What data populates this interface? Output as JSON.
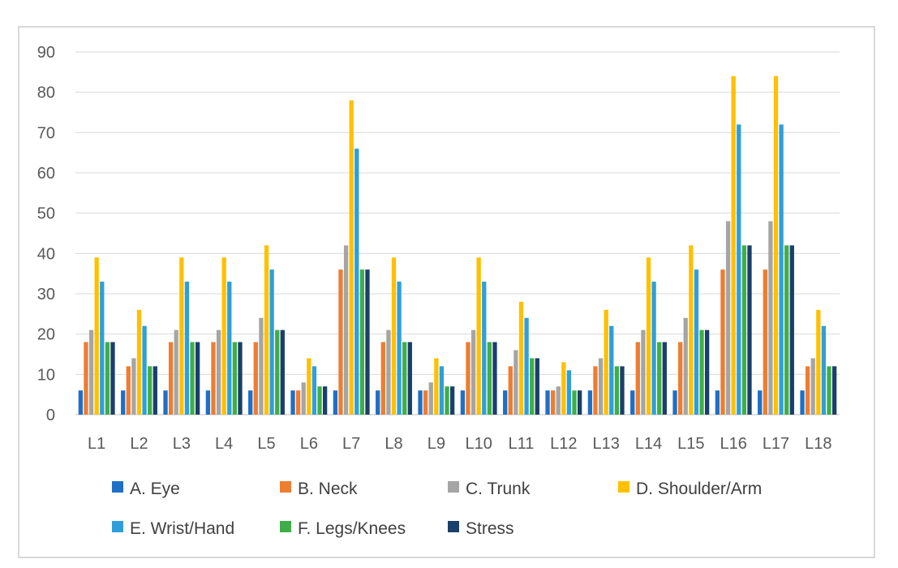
{
  "chart_data": {
    "type": "bar",
    "title": "",
    "xlabel": "",
    "ylabel": "",
    "ylim": [
      0,
      90
    ],
    "yticks": [
      0,
      10,
      20,
      30,
      40,
      50,
      60,
      70,
      80,
      90
    ],
    "grid": true,
    "legend_position": "bottom",
    "categories": [
      "L1",
      "L2",
      "L3",
      "L4",
      "L5",
      "L6",
      "L7",
      "L8",
      "L9",
      "L10",
      "L11",
      "L12",
      "L13",
      "L14",
      "L15",
      "L16",
      "L17",
      "L18"
    ],
    "series": [
      {
        "name": "A. Eye",
        "color": "#1f6fc5",
        "values": [
          6,
          6,
          6,
          6,
          6,
          6,
          6,
          6,
          6,
          6,
          6,
          6,
          6,
          6,
          6,
          6,
          6,
          6
        ]
      },
      {
        "name": "B. Neck",
        "color": "#ed7d31",
        "values": [
          18,
          12,
          18,
          18,
          18,
          6,
          36,
          18,
          6,
          18,
          12,
          6,
          12,
          18,
          18,
          36,
          36,
          12
        ]
      },
      {
        "name": "C. Trunk",
        "color": "#a5a5a5",
        "values": [
          21,
          14,
          21,
          21,
          24,
          8,
          42,
          21,
          8,
          21,
          16,
          7,
          14,
          21,
          24,
          48,
          48,
          14
        ]
      },
      {
        "name": "D. Shoulder/Arm",
        "color": "#ffc000",
        "values": [
          39,
          26,
          39,
          39,
          42,
          14,
          78,
          39,
          14,
          39,
          28,
          13,
          26,
          39,
          42,
          84,
          84,
          26
        ]
      },
      {
        "name": "E. Wrist/Hand",
        "color": "#2e9fd8",
        "values": [
          33,
          22,
          33,
          33,
          36,
          12,
          66,
          33,
          12,
          33,
          24,
          11,
          22,
          33,
          36,
          72,
          72,
          22
        ]
      },
      {
        "name": "F. Legs/Knees",
        "color": "#3fae49",
        "values": [
          18,
          12,
          18,
          18,
          21,
          7,
          36,
          18,
          7,
          18,
          14,
          6,
          12,
          18,
          21,
          42,
          42,
          12
        ]
      },
      {
        "name": "Stress",
        "color": "#1a3f6b",
        "values": [
          18,
          12,
          18,
          18,
          21,
          7,
          36,
          18,
          7,
          18,
          14,
          6,
          12,
          18,
          21,
          42,
          42,
          12
        ]
      }
    ]
  }
}
